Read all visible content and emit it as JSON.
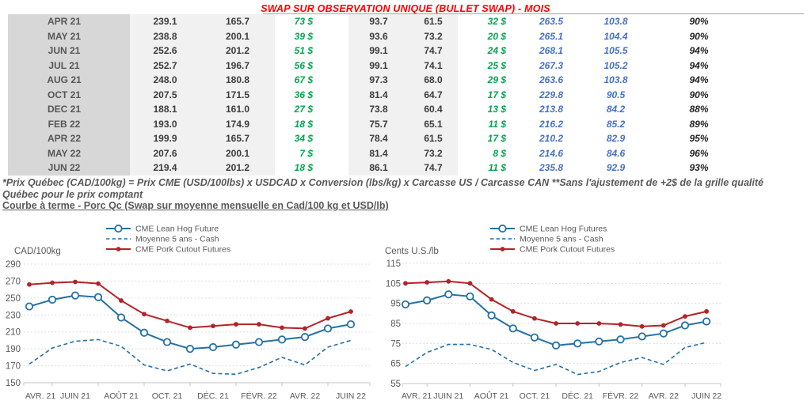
{
  "title": "SWAP SUR OBSERVATION UNIQUE (BULLET SWAP) - MOIS",
  "table": {
    "rows": [
      {
        "month": "APR 21",
        "values": [
          "239.1",
          "165.7",
          "73 $",
          "93.7",
          "61.5",
          "32 $",
          "263.5",
          "103.8",
          "90%"
        ]
      },
      {
        "month": "MAY 21",
        "values": [
          "238.8",
          "200.1",
          "39 $",
          "93.6",
          "73.2",
          "20 $",
          "265.1",
          "104.4",
          "90%"
        ]
      },
      {
        "month": "JUN 21",
        "values": [
          "252.6",
          "201.2",
          "51 $",
          "99.1",
          "74.7",
          "24 $",
          "268.1",
          "105.5",
          "94%"
        ]
      },
      {
        "month": "JUL 21",
        "values": [
          "252.7",
          "196.7",
          "56 $",
          "99.1",
          "74.1",
          "25 $",
          "267.3",
          "105.2",
          "94%"
        ]
      },
      {
        "month": "AUG 21",
        "values": [
          "248.0",
          "180.8",
          "67 $",
          "97.3",
          "68.0",
          "29 $",
          "263.6",
          "103.8",
          "94%"
        ]
      },
      {
        "month": "OCT 21",
        "values": [
          "207.5",
          "171.5",
          "36 $",
          "81.4",
          "64.7",
          "17 $",
          "229.8",
          "90.5",
          "90%"
        ]
      },
      {
        "month": "DEC 21",
        "values": [
          "188.1",
          "161.0",
          "27 $",
          "73.8",
          "60.4",
          "13 $",
          "213.8",
          "84.2",
          "88%"
        ]
      },
      {
        "month": "FEB 22",
        "values": [
          "193.0",
          "174.9",
          "18 $",
          "75.7",
          "65.1",
          "11 $",
          "216.2",
          "85.2",
          "89%"
        ]
      },
      {
        "month": "APR 22",
        "values": [
          "199.9",
          "165.7",
          "34 $",
          "78.4",
          "61.5",
          "17 $",
          "210.2",
          "82.9",
          "95%"
        ]
      },
      {
        "month": "MAY 22",
        "values": [
          "207.6",
          "200.1",
          "7 $",
          "81.4",
          "73.2",
          "8 $",
          "214.6",
          "84.6",
          "96%"
        ]
      },
      {
        "month": "JUN 22",
        "values": [
          "219.4",
          "201.2",
          "18 $",
          "86.1",
          "74.7",
          "11 $",
          "235.8",
          "92.9",
          "93%"
        ]
      }
    ]
  },
  "footnote_lines": [
    "*Prix Québec (CAD/100kg) = Prix CME (USD/100lbs) x USDCAD x Conversion (lbs/kg) x Carcasse US / Carcasse CAN **Sans l'ajustement de +2$ de la grille qualité",
    "Québec pour le prix comptant"
  ],
  "section_heading": "Courbe à terme - Porc Qc (Swap sur moyenne mensuelle en Cad/100 kg et USD/lb)",
  "colors": {
    "title_red": "#FF0000",
    "table_green": "#00A550",
    "table_blue": "#4472C4",
    "chart_blue": "#2471A5",
    "chart_red": "#B22428",
    "gridline": "#d6d6d6",
    "axis_text": "#595959"
  },
  "chart_data": [
    {
      "type": "line",
      "title": "",
      "unit_label": "CAD/100kg",
      "ylim": [
        150,
        290
      ],
      "ytick_step": 20,
      "grid": true,
      "legend_position": "top",
      "x_tick_labels": [
        "AVR. 21",
        "JUIN 21",
        "AOÛT 21",
        "OCT. 21",
        "DÉC. 21",
        "FÉVR. 22",
        "AVR. 22",
        "JUIN 22"
      ],
      "x_range_note": "15 points mensuels de AVR. 21 à JUIN 22",
      "series": [
        {
          "name": "CME Lean Hog Future",
          "style": "line-open-circle",
          "color": "#2471A5",
          "values": [
            240,
            248,
            253,
            251,
            227,
            209,
            198,
            190,
            192,
            195,
            198,
            201,
            204,
            214,
            219
          ]
        },
        {
          "name": "Moyenne 5 ans - Cash",
          "style": "dashed",
          "color": "#2471A5",
          "values": [
            172,
            191,
            199,
            201,
            193,
            171,
            164,
            172,
            161,
            160,
            168,
            180,
            171,
            192,
            200
          ]
        },
        {
          "name": "CME Pork Cutout Futures",
          "style": "line-dot",
          "color": "#B22428",
          "values": [
            266,
            268,
            269,
            267,
            247,
            231,
            223,
            215,
            217,
            219,
            219,
            215,
            214,
            226,
            234
          ]
        }
      ]
    },
    {
      "type": "line",
      "title": "",
      "unit_label": "Cents U.S./lb",
      "ylim": [
        55,
        115
      ],
      "ytick_step": 10,
      "grid": true,
      "legend_position": "top",
      "x_tick_labels": [
        "AVR. 21",
        "JUIN 21",
        "AOÛT 21",
        "OCT. 21",
        "DÉC. 21",
        "FÉVR. 22",
        "AVR. 22",
        "JUIN 22"
      ],
      "x_range_note": "15 points mensuels de AVR. 21 à JUIN 22",
      "series": [
        {
          "name": "CME Lean Hog Futures",
          "style": "line-open-circle",
          "color": "#2471A5",
          "values": [
            94.5,
            96.5,
            99.5,
            98.5,
            89,
            82.5,
            78,
            74,
            75,
            76,
            77,
            78.5,
            80,
            84,
            86
          ]
        },
        {
          "name": "Moyenne 5 ans - Cash",
          "style": "dashed",
          "color": "#2471A5",
          "values": [
            63.5,
            70.5,
            74.5,
            74.5,
            72,
            65.5,
            61.5,
            64.5,
            59.5,
            61,
            65.5,
            68,
            64.5,
            73,
            75.5
          ]
        },
        {
          "name": "CME Pork Cutout Futures",
          "style": "line-dot",
          "color": "#B22428",
          "values": [
            105,
            105.5,
            106,
            105,
            97,
            91,
            87.5,
            85,
            85,
            85,
            84.5,
            83.5,
            84,
            88.5,
            91
          ]
        }
      ]
    }
  ]
}
